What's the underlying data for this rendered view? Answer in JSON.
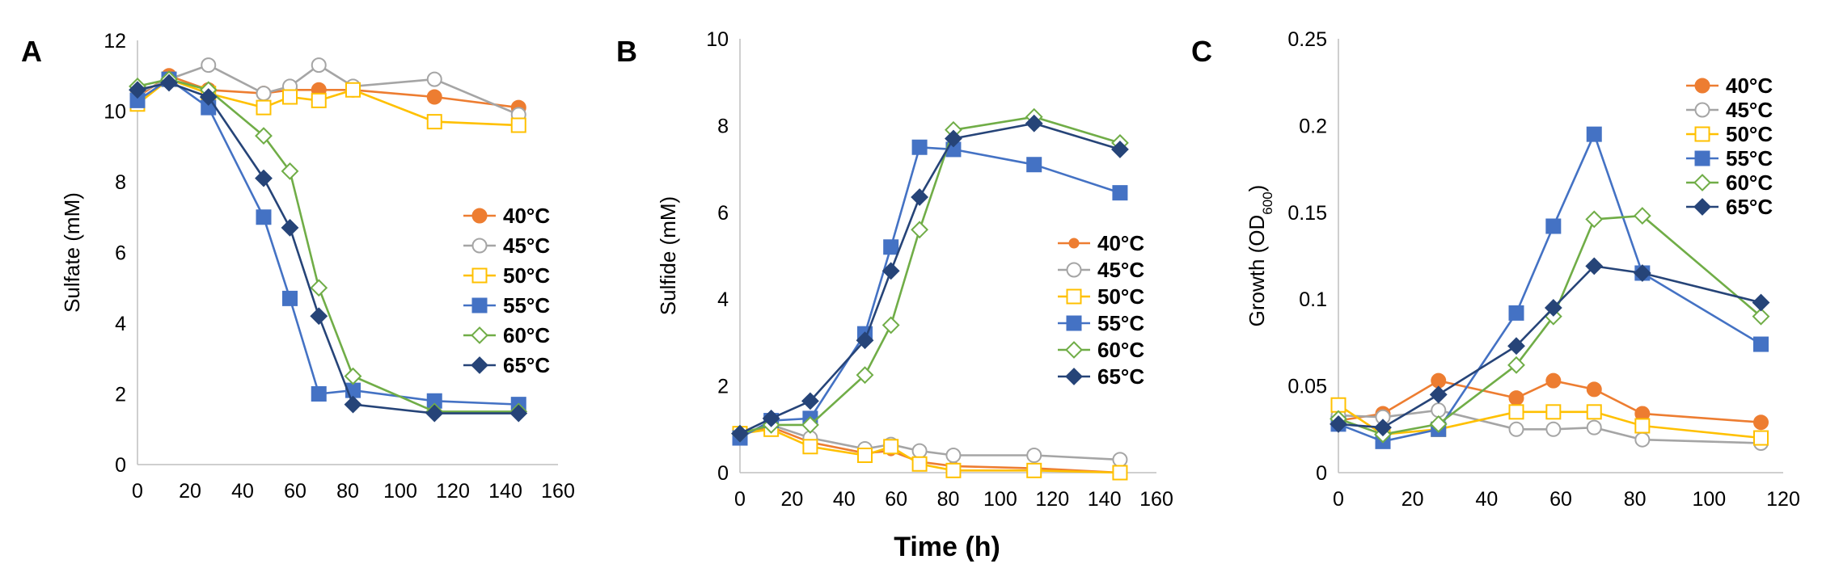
{
  "figure": {
    "x_axis_label_shared": "Time (h)"
  },
  "chart_data": [
    {
      "type": "line",
      "panel_label": "A",
      "ylabel": "Sulfate (mM)",
      "xlabel": "",
      "xlim": [
        0,
        160
      ],
      "xticks": [
        0,
        20,
        40,
        60,
        80,
        100,
        120,
        140,
        160
      ],
      "xtick_labels": [
        "0",
        "20",
        "40",
        "60",
        "80",
        "100",
        "120",
        "140",
        "160"
      ],
      "ylim": [
        0,
        12
      ],
      "yticks": [
        0,
        2,
        4,
        6,
        8,
        10,
        12
      ],
      "ytick_labels": [
        "0",
        "2",
        "4",
        "6",
        "8",
        "10",
        "12"
      ],
      "legend_position": "center-right",
      "series": [
        {
          "name": "40°C",
          "color": "#ED7D31",
          "marker": "circle",
          "filled": true,
          "x": [
            0,
            12,
            27,
            48,
            58,
            69,
            82,
            113,
            145
          ],
          "y": [
            10.4,
            11.0,
            10.6,
            10.5,
            10.6,
            10.6,
            10.6,
            10.4,
            10.1
          ]
        },
        {
          "name": "45°C",
          "color": "#A5A5A5",
          "marker": "circle",
          "filled": false,
          "x": [
            0,
            12,
            27,
            48,
            58,
            69,
            82,
            113,
            145
          ],
          "y": [
            10.5,
            10.9,
            11.3,
            10.5,
            10.7,
            11.3,
            10.7,
            10.9,
            9.9
          ]
        },
        {
          "name": "50°C",
          "color": "#FFC000",
          "marker": "square",
          "filled": false,
          "x": [
            0,
            12,
            27,
            48,
            58,
            69,
            82,
            113,
            145
          ],
          "y": [
            10.2,
            10.9,
            10.5,
            10.1,
            10.4,
            10.3,
            10.6,
            9.7,
            9.6
          ]
        },
        {
          "name": "55°C",
          "color": "#4472C4",
          "marker": "square",
          "filled": true,
          "x": [
            0,
            12,
            27,
            48,
            58,
            69,
            82,
            113,
            145
          ],
          "y": [
            10.3,
            10.9,
            10.1,
            7.0,
            4.7,
            2.0,
            2.1,
            1.8,
            1.7
          ]
        },
        {
          "name": "60°C",
          "color": "#70AD47",
          "marker": "diamond",
          "filled": false,
          "x": [
            0,
            12,
            27,
            48,
            58,
            69,
            82,
            113,
            145
          ],
          "y": [
            10.7,
            10.9,
            10.6,
            9.3,
            8.3,
            5.0,
            2.5,
            1.5,
            1.5
          ]
        },
        {
          "name": "65°C",
          "color": "#264478",
          "marker": "diamond",
          "filled": true,
          "x": [
            0,
            12,
            27,
            48,
            58,
            69,
            82,
            113,
            145
          ],
          "y": [
            10.6,
            10.8,
            10.4,
            8.1,
            6.7,
            4.2,
            1.7,
            1.45,
            1.45
          ]
        }
      ]
    },
    {
      "type": "line",
      "panel_label": "B",
      "ylabel": "Sulfide (mM)",
      "xlabel": "Time (h)",
      "xlim": [
        0,
        160
      ],
      "xticks": [
        0,
        20,
        40,
        60,
        80,
        100,
        120,
        140,
        160
      ],
      "xtick_labels": [
        "0",
        "20",
        "40",
        "60",
        "80",
        "100",
        "120",
        "140",
        "160"
      ],
      "ylim": [
        0,
        10
      ],
      "yticks": [
        0,
        2,
        4,
        6,
        8,
        10
      ],
      "ytick_labels": [
        "0",
        "2",
        "4",
        "6",
        "8",
        "10"
      ],
      "legend_position": "center-right",
      "series": [
        {
          "name": "40°C",
          "color": "#ED7D31",
          "marker": "circle-small",
          "filled": true,
          "x": [
            0,
            12,
            27,
            48,
            58,
            69,
            82,
            113,
            146
          ],
          "y": [
            0.9,
            1.05,
            0.7,
            0.45,
            0.5,
            0.25,
            0.15,
            0.1,
            0.0
          ]
        },
        {
          "name": "45°C",
          "color": "#A5A5A5",
          "marker": "circle",
          "filled": false,
          "x": [
            0,
            12,
            27,
            48,
            58,
            69,
            82,
            113,
            146
          ],
          "y": [
            0.9,
            1.1,
            0.8,
            0.55,
            0.65,
            0.5,
            0.4,
            0.4,
            0.3
          ]
        },
        {
          "name": "50°C",
          "color": "#FFC000",
          "marker": "square",
          "filled": false,
          "x": [
            0,
            12,
            27,
            48,
            58,
            69,
            82,
            113,
            146
          ],
          "y": [
            0.9,
            1.0,
            0.6,
            0.4,
            0.6,
            0.2,
            0.05,
            0.05,
            0.0
          ]
        },
        {
          "name": "55°C",
          "color": "#4472C4",
          "marker": "square",
          "filled": true,
          "x": [
            0,
            12,
            27,
            48,
            58,
            69,
            82,
            113,
            146
          ],
          "y": [
            0.8,
            1.2,
            1.25,
            3.2,
            5.2,
            7.5,
            7.45,
            7.1,
            6.45
          ]
        },
        {
          "name": "60°C",
          "color": "#70AD47",
          "marker": "diamond",
          "filled": false,
          "x": [
            0,
            12,
            27,
            48,
            58,
            69,
            82,
            113,
            146
          ],
          "y": [
            0.9,
            1.1,
            1.1,
            2.25,
            3.4,
            5.6,
            7.9,
            8.2,
            7.6
          ]
        },
        {
          "name": "65°C",
          "color": "#264478",
          "marker": "diamond",
          "filled": true,
          "x": [
            0,
            12,
            27,
            48,
            58,
            69,
            82,
            113,
            146
          ],
          "y": [
            0.9,
            1.25,
            1.65,
            3.05,
            4.65,
            6.35,
            7.7,
            8.05,
            7.45
          ]
        }
      ]
    },
    {
      "type": "line",
      "panel_label": "C",
      "ylabel": "Growth (OD",
      "ylabel_sub": "600",
      "ylabel_end": ")",
      "xlabel": "",
      "xlim": [
        0,
        120
      ],
      "xticks": [
        0,
        20,
        40,
        60,
        80,
        100,
        120
      ],
      "xtick_labels": [
        "0",
        "20",
        "40",
        "60",
        "80",
        "100",
        "120"
      ],
      "ylim": [
        0,
        0.25
      ],
      "yticks": [
        0,
        0.05,
        0.1,
        0.15,
        0.2,
        0.25
      ],
      "ytick_labels": [
        "0",
        "0.05",
        "0.1",
        "0.15",
        "0.2",
        "0.25"
      ],
      "legend_position": "top-right",
      "series": [
        {
          "name": "40°C",
          "color": "#ED7D31",
          "marker": "circle",
          "filled": true,
          "x": [
            0,
            12,
            27,
            48,
            58,
            69,
            82,
            114
          ],
          "y": [
            0.03,
            0.034,
            0.053,
            0.043,
            0.053,
            0.048,
            0.034,
            0.029
          ]
        },
        {
          "name": "45°C",
          "color": "#A5A5A5",
          "marker": "circle",
          "filled": false,
          "x": [
            0,
            12,
            27,
            48,
            58,
            69,
            82,
            114
          ],
          "y": [
            0.033,
            0.032,
            0.036,
            0.025,
            0.025,
            0.026,
            0.019,
            0.017
          ]
        },
        {
          "name": "50°C",
          "color": "#FFC000",
          "marker": "square",
          "filled": false,
          "x": [
            0,
            12,
            27,
            48,
            58,
            69,
            82,
            114
          ],
          "y": [
            0.039,
            0.022,
            0.025,
            0.035,
            0.035,
            0.035,
            0.027,
            0.02
          ]
        },
        {
          "name": "55°C",
          "color": "#4472C4",
          "marker": "square",
          "filled": true,
          "x": [
            0,
            12,
            27,
            48,
            58,
            69,
            82,
            114
          ],
          "y": [
            0.028,
            0.018,
            0.025,
            0.092,
            0.142,
            0.195,
            0.115,
            0.074
          ]
        },
        {
          "name": "60°C",
          "color": "#70AD47",
          "marker": "diamond",
          "filled": false,
          "x": [
            0,
            12,
            27,
            48,
            58,
            69,
            82,
            114
          ],
          "y": [
            0.031,
            0.022,
            0.028,
            0.062,
            0.09,
            0.146,
            0.148,
            0.09
          ]
        },
        {
          "name": "65°C",
          "color": "#264478",
          "marker": "diamond",
          "filled": true,
          "x": [
            0,
            12,
            27,
            48,
            58,
            69,
            82,
            114
          ],
          "y": [
            0.028,
            0.026,
            0.045,
            0.073,
            0.095,
            0.119,
            0.115,
            0.098
          ]
        }
      ]
    }
  ]
}
